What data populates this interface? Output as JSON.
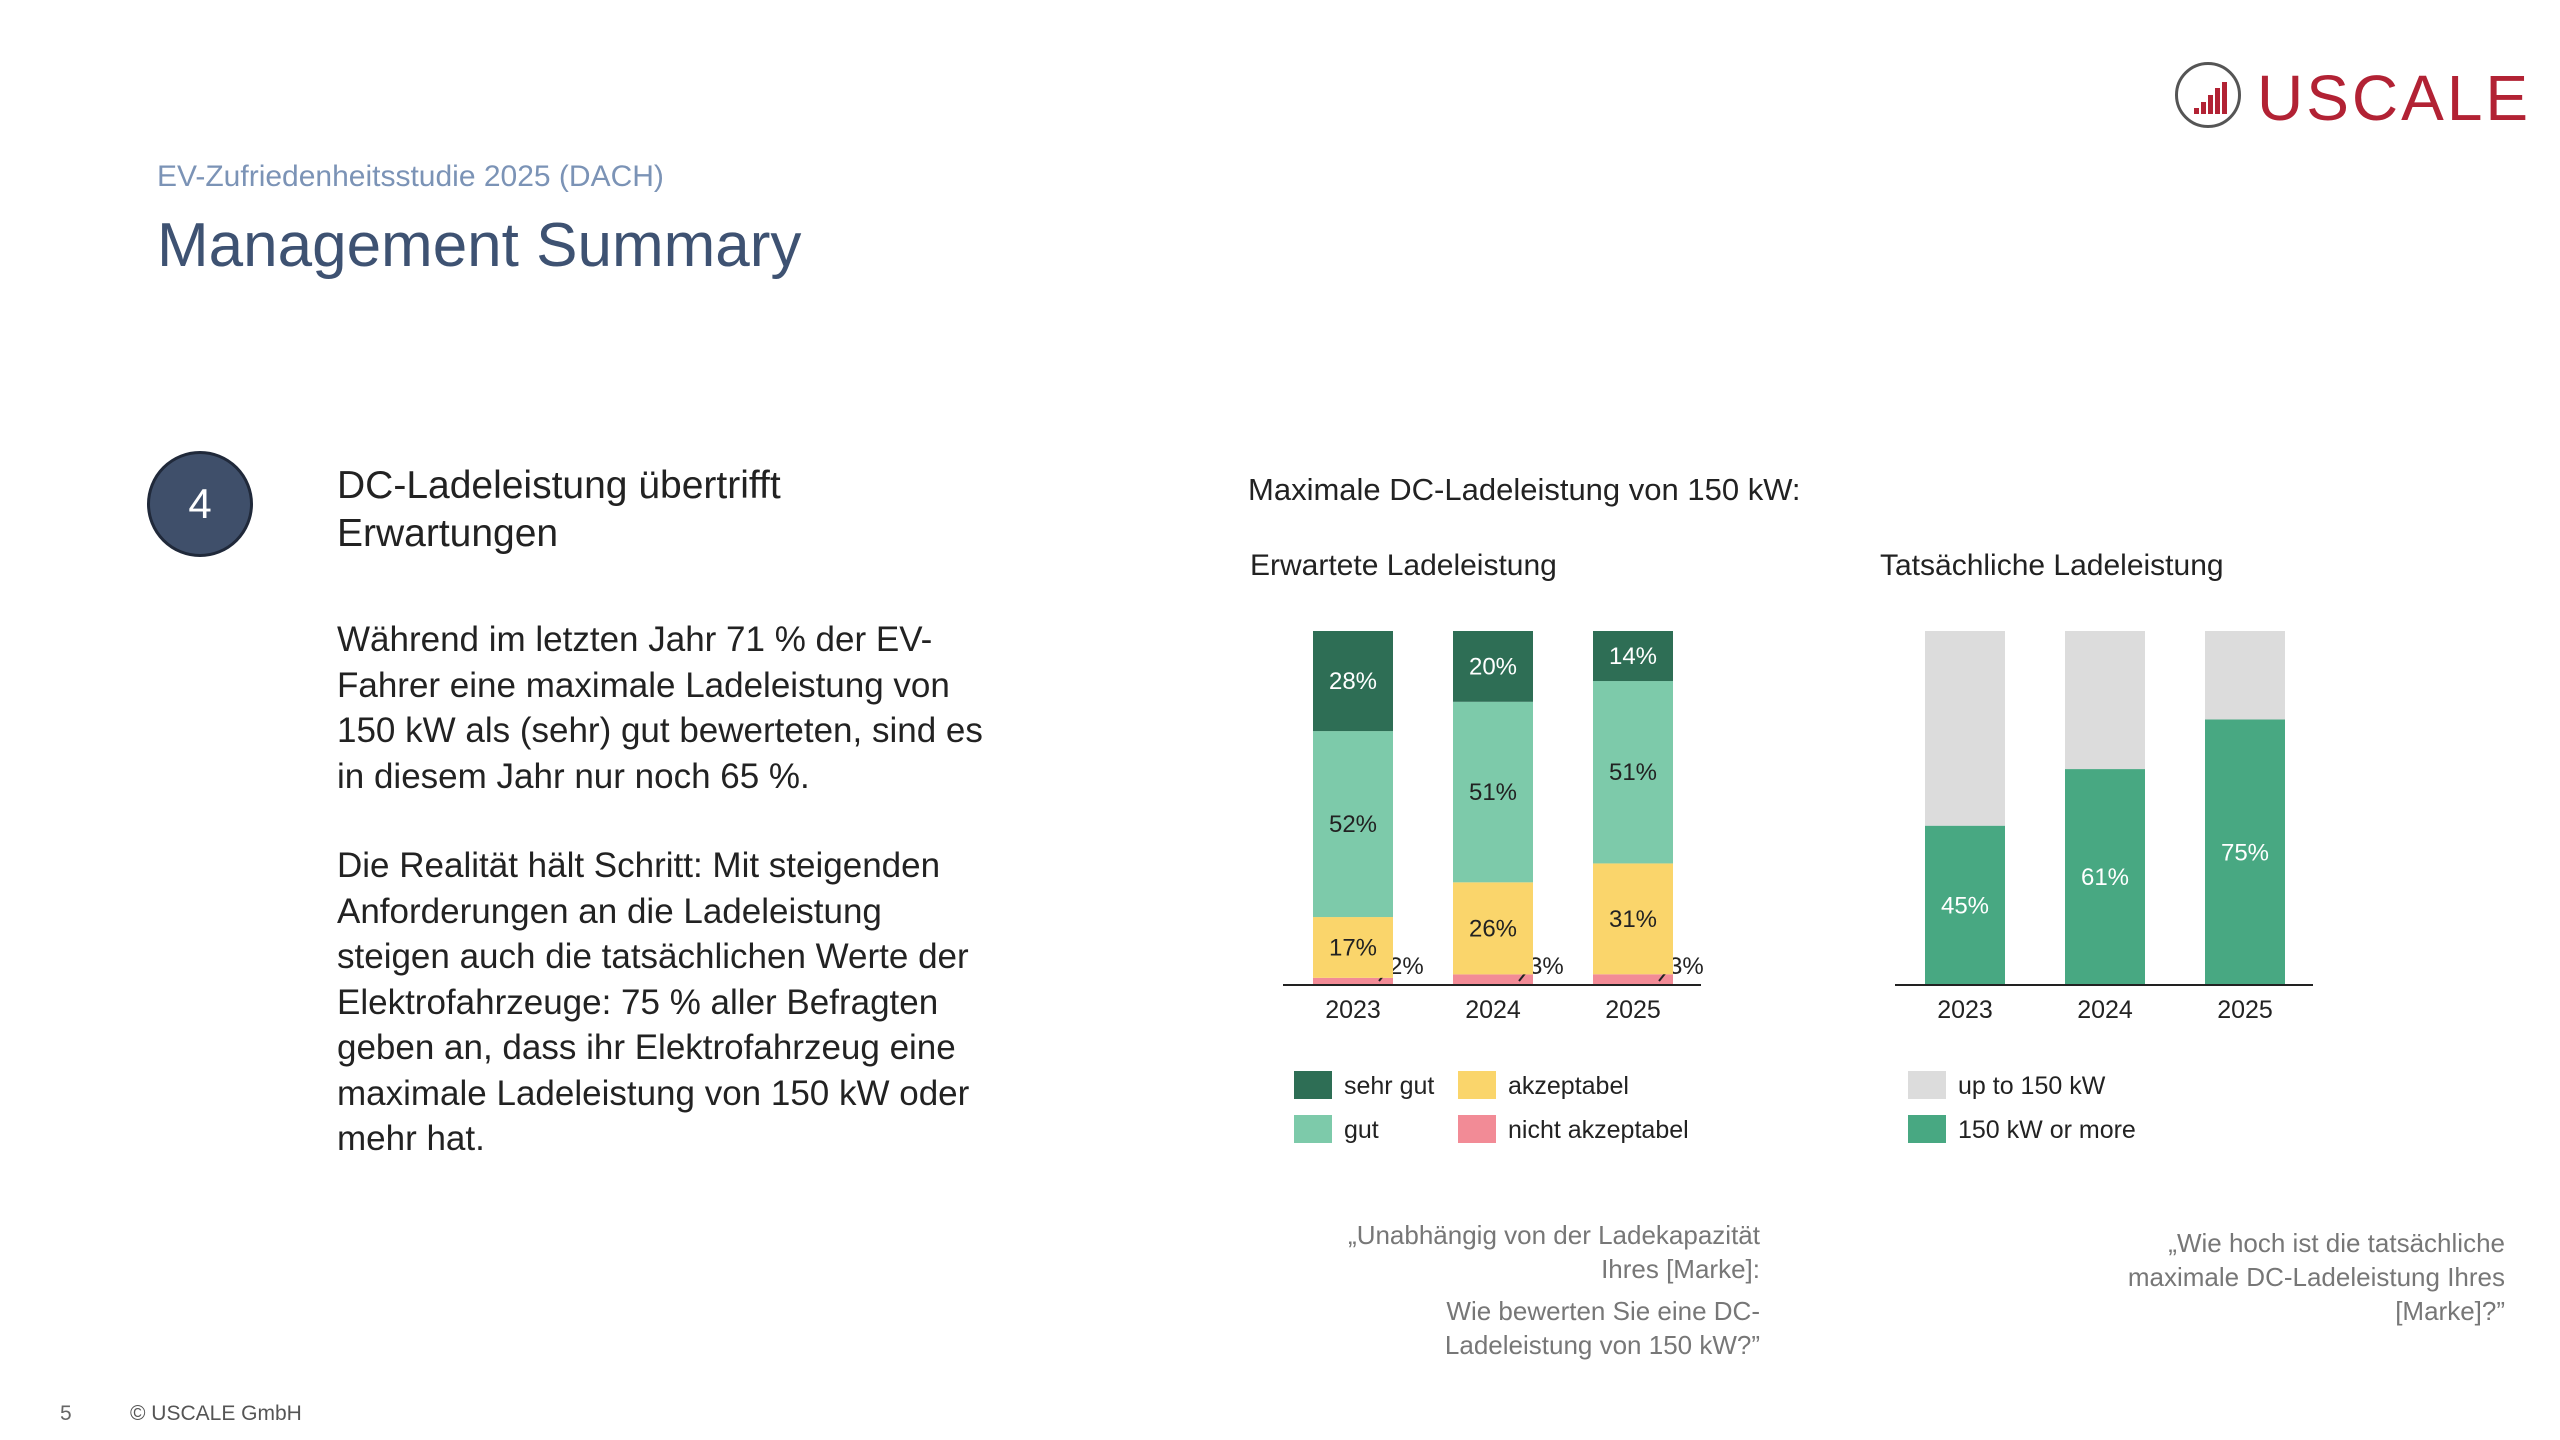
{
  "header": {
    "subtitle": "EV-Zufriedenheitsstudie 2025 (DACH)",
    "title": "Management Summary"
  },
  "logo": {
    "text": "USCALE",
    "color": "#b22234"
  },
  "point": {
    "number": "4",
    "heading": "DC-Ladeleistung übertrifft Erwartungen",
    "paragraph1": "Während im letzten Jahr 71 % der EV-Fahrer eine maximale Ladeleistung von 150 kW als (sehr) gut bewerteten, sind es in diesem Jahr nur noch 65 %.",
    "paragraph2": "Die Realität hält Schritt: Mit steigenden Anforderungen an die Ladeleistung steigen auch die tatsächlichen Werte der Elektrofahrzeuge: 75 % aller Befragten geben an, dass ihr Elektrofahrzeug eine maximale Ladeleistung von 150 kW oder mehr hat."
  },
  "chart_heading": "Maximale DC-Ladeleistung von 150 kW:",
  "chart_data": [
    {
      "type": "bar",
      "stacked": true,
      "title": "Erwartete Ladeleistung",
      "categories": [
        "2023",
        "2024",
        "2025"
      ],
      "series": [
        {
          "name": "nicht akzeptabel",
          "values": [
            2,
            3,
            3
          ],
          "color": "#f28b96"
        },
        {
          "name": "akzeptabel",
          "values": [
            17,
            26,
            31
          ],
          "color": "#fad56b"
        },
        {
          "name": "gut",
          "values": [
            52,
            51,
            51
          ],
          "color": "#7dcaaa"
        },
        {
          "name": "sehr gut",
          "values": [
            28,
            20,
            14
          ],
          "color": "#2e6e55"
        }
      ],
      "labels": [
        [
          "2%",
          "17%",
          "52%",
          "28%"
        ],
        [
          "3%",
          "26%",
          "51%",
          "20%"
        ],
        [
          "3%",
          "31%",
          "51%",
          "14%"
        ]
      ],
      "legend_order": [
        "sehr gut",
        "akzeptabel",
        "gut",
        "nicht akzeptabel"
      ],
      "legend_position": "bottom",
      "question": {
        "line1": "„Unabhängig von der Ladekapazität Ihres [Marke]:",
        "line2": "Wie bewerten Sie eine DC-Ladeleistung von 150 kW?”"
      }
    },
    {
      "type": "bar",
      "stacked": true,
      "title": "Tatsächliche Ladeleistung",
      "categories": [
        "2023",
        "2024",
        "2025"
      ],
      "series": [
        {
          "name": "150 kW or more",
          "values": [
            45,
            61,
            75
          ],
          "color": "#48a882"
        },
        {
          "name": "up to 150 kW",
          "values": [
            55,
            39,
            25
          ],
          "color": "#dcdcdc"
        }
      ],
      "labels": [
        [
          "45%",
          ""
        ],
        [
          "61%",
          ""
        ],
        [
          "75%",
          ""
        ]
      ],
      "legend_order": [
        "up to 150 kW",
        "150 kW or more"
      ],
      "legend_position": "bottom",
      "question": {
        "line1": "„Wie hoch ist die tatsächliche maximale DC-Ladeleistung Ihres [Marke]?”"
      }
    }
  ],
  "footer": {
    "page": "5",
    "copyright": "© USCALE GmbH"
  }
}
